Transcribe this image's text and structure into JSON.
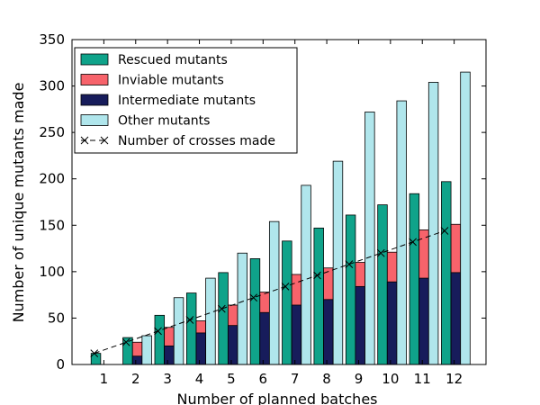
{
  "chart_data": {
    "type": "bar",
    "title": "",
    "xlabel": "Number of planned batches",
    "ylabel": "Number of unique mutants made",
    "categories": [
      "1",
      "2",
      "3",
      "4",
      "5",
      "6",
      "7",
      "8",
      "9",
      "10",
      "11",
      "12"
    ],
    "ylim": [
      0,
      350
    ],
    "yticks": [
      0,
      50,
      100,
      150,
      200,
      250,
      300,
      350
    ],
    "grid": false,
    "legend_position": "top-left",
    "series": [
      {
        "name": "Rescued mutants",
        "color": "#0fa38a",
        "values": [
          12,
          29,
          53,
          77,
          99,
          114,
          133,
          147,
          161,
          172,
          184,
          197
        ]
      },
      {
        "name": "Inviable mutants",
        "color": "#f7636b",
        "values": [
          0,
          24,
          40,
          47,
          64,
          78,
          97,
          104,
          110,
          121,
          145,
          151
        ]
      },
      {
        "name": "Intermediate mutants",
        "color": "#171c5b",
        "values": [
          0,
          9,
          20,
          34,
          42,
          56,
          64,
          70,
          84,
          89,
          93,
          99
        ]
      },
      {
        "name": "Other mutants",
        "color": "#b0e6ec",
        "values": [
          0,
          31,
          72,
          93,
          120,
          154,
          193,
          219,
          272,
          284,
          304,
          315
        ]
      }
    ],
    "line_series": {
      "name": "Number of crosses made",
      "values": [
        12,
        24,
        36,
        48,
        60,
        72,
        84,
        96,
        108,
        120,
        132,
        144
      ]
    }
  }
}
